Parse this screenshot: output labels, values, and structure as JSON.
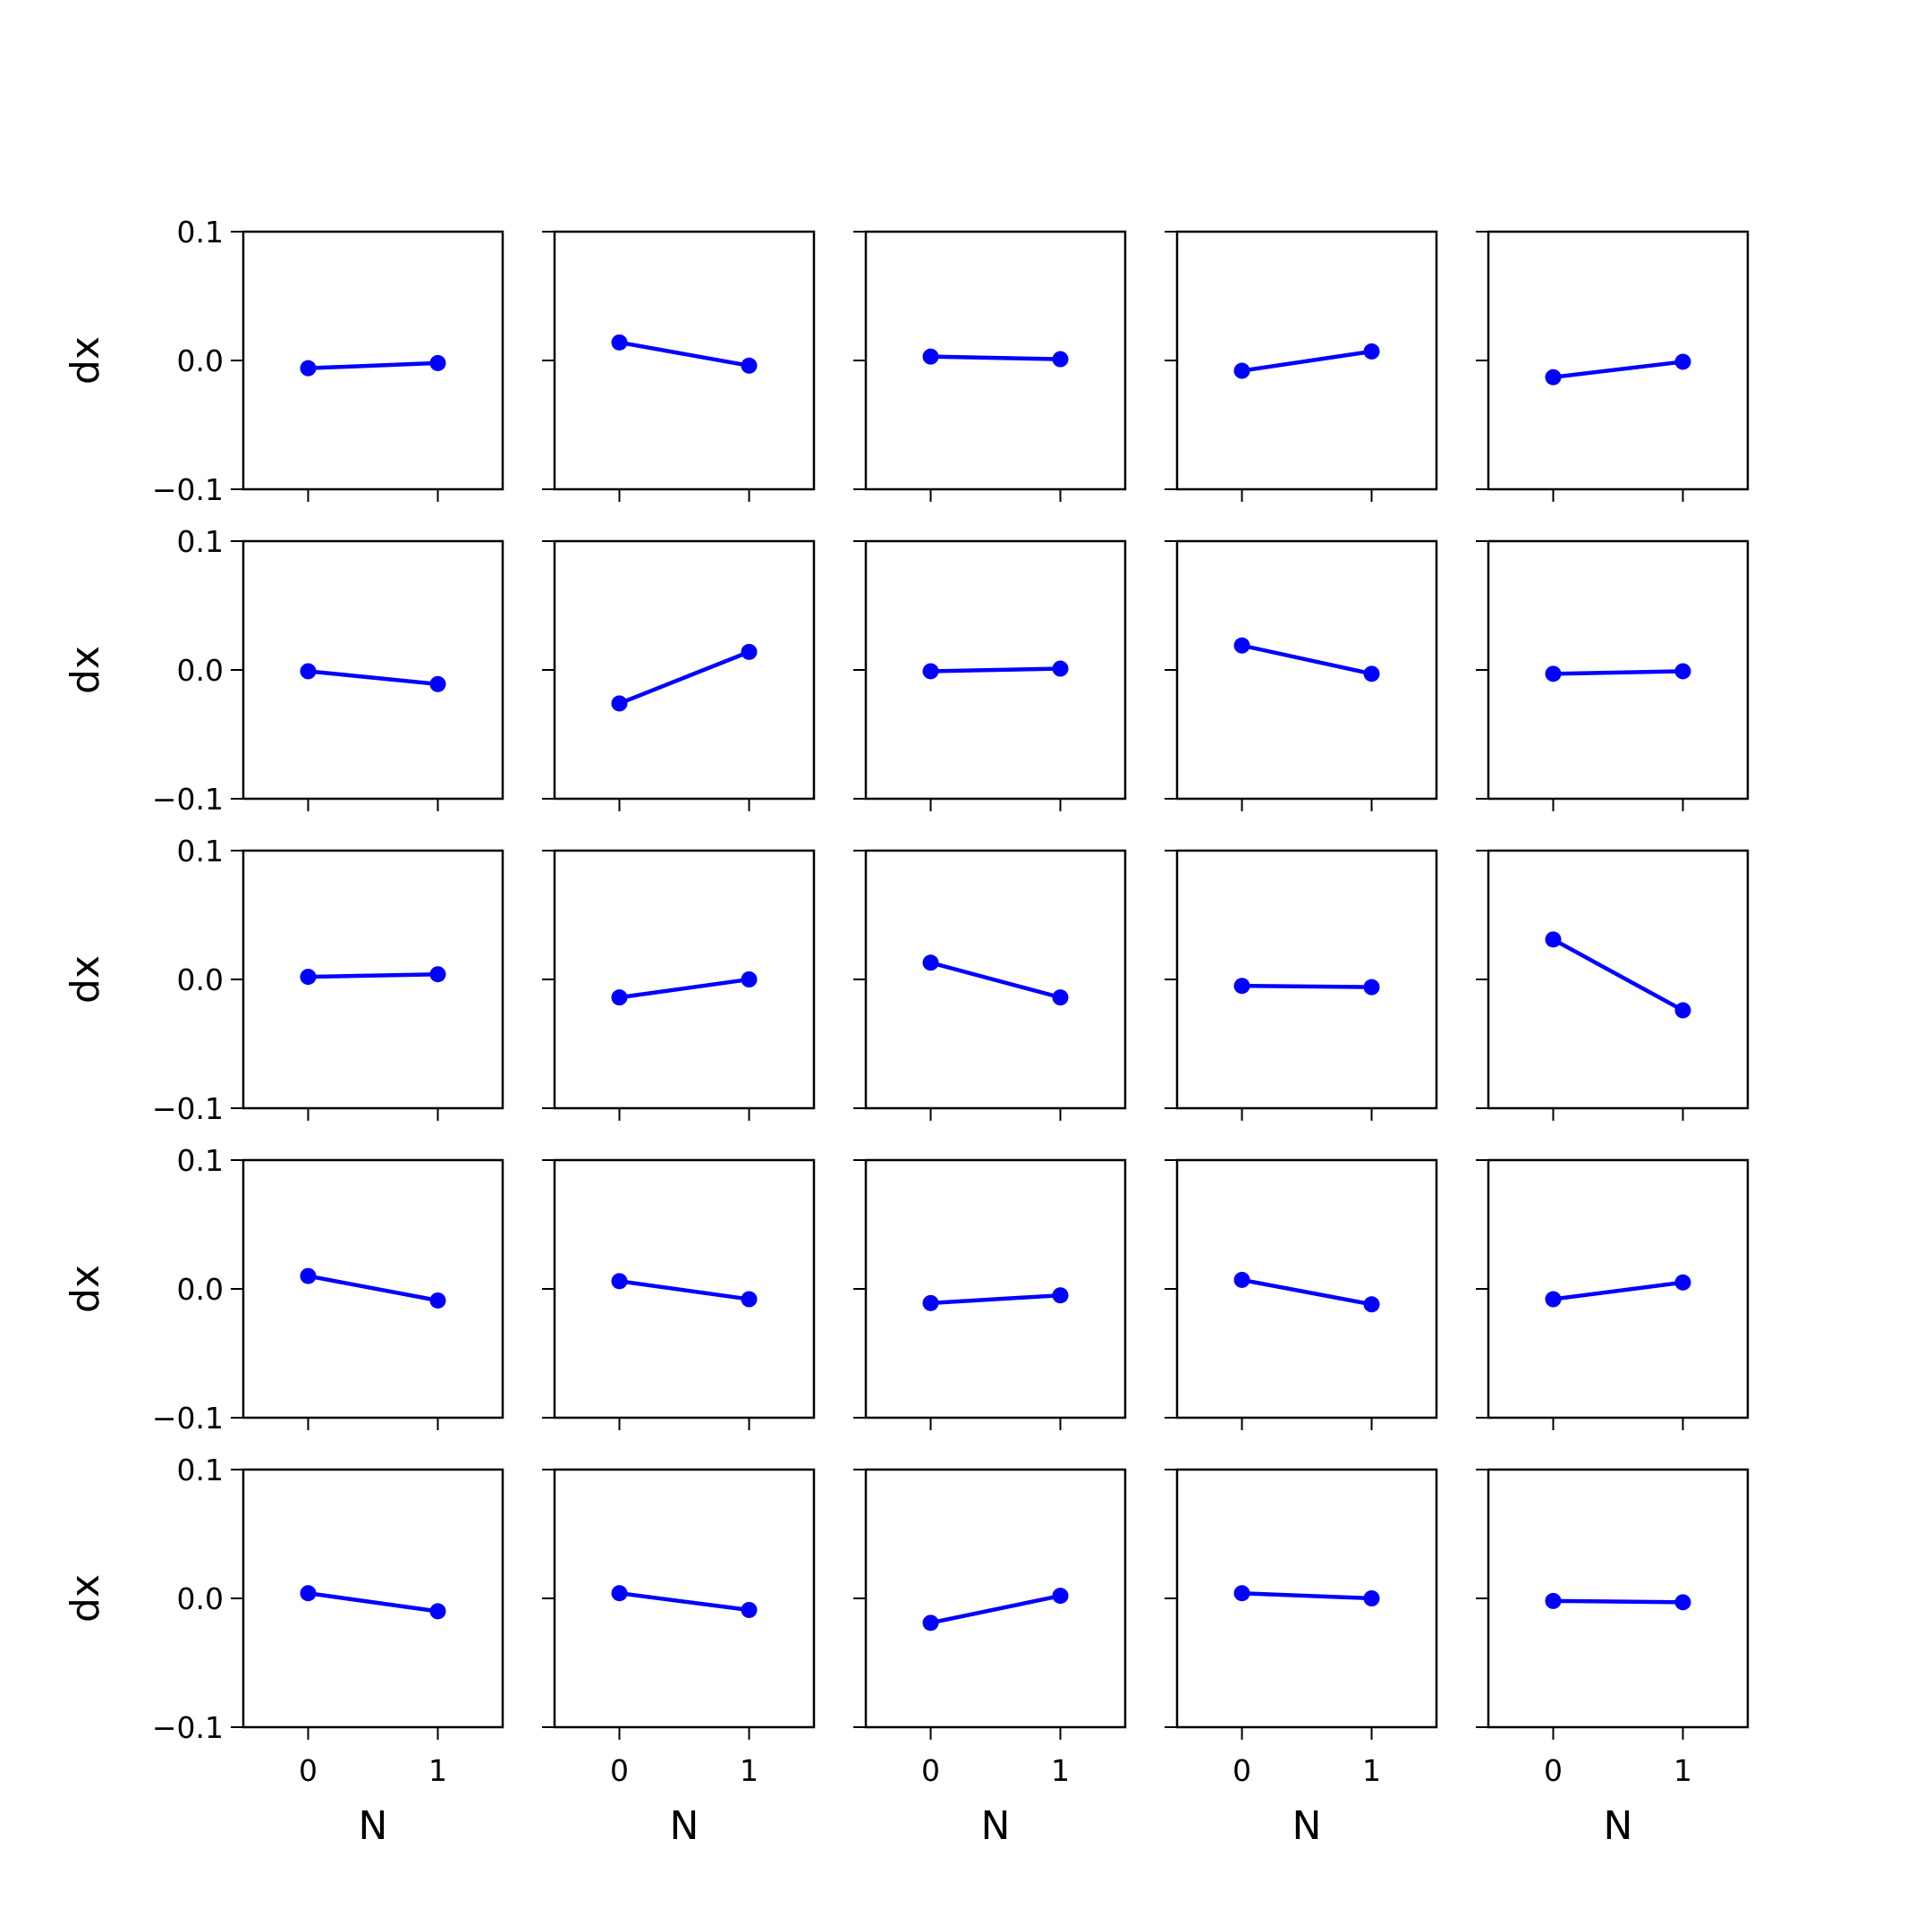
{
  "chart_data": {
    "type": "line",
    "layout": {
      "rows": 5,
      "cols": 5,
      "sharex": true,
      "sharey": true
    },
    "xlabel": "N",
    "ylabel": "dx",
    "xlim": [
      -0.5,
      1.5
    ],
    "ylim": [
      -0.1,
      0.1
    ],
    "x_ticks": [
      "0",
      "1"
    ],
    "y_ticks": [
      "0.1",
      "0.0",
      "−0.1"
    ],
    "x_tick_values": [
      0,
      1
    ],
    "y_tick_values": [
      0.1,
      0.0,
      -0.1
    ],
    "grid": false,
    "marker": "o",
    "color": "#0000ff",
    "x": [
      0,
      1
    ],
    "panels": [
      [
        -0.006,
        -0.002
      ],
      [
        0.014,
        -0.004
      ],
      [
        0.003,
        0.001
      ],
      [
        -0.008,
        0.007
      ],
      [
        -0.013,
        -0.001
      ],
      [
        -0.001,
        -0.011
      ],
      [
        -0.026,
        0.014
      ],
      [
        -0.001,
        0.001
      ],
      [
        0.019,
        -0.003
      ],
      [
        -0.003,
        -0.001
      ],
      [
        0.002,
        0.004
      ],
      [
        -0.014,
        0.0
      ],
      [
        0.013,
        -0.014
      ],
      [
        -0.005,
        -0.006
      ],
      [
        0.031,
        -0.024
      ],
      [
        0.01,
        -0.009
      ],
      [
        0.006,
        -0.008
      ],
      [
        -0.011,
        -0.005
      ],
      [
        0.007,
        -0.012
      ],
      [
        -0.008,
        0.005
      ],
      [
        0.004,
        -0.01
      ],
      [
        0.004,
        -0.009
      ],
      [
        -0.019,
        0.002
      ],
      [
        0.004,
        0.0
      ],
      [
        -0.002,
        -0.003
      ]
    ]
  }
}
